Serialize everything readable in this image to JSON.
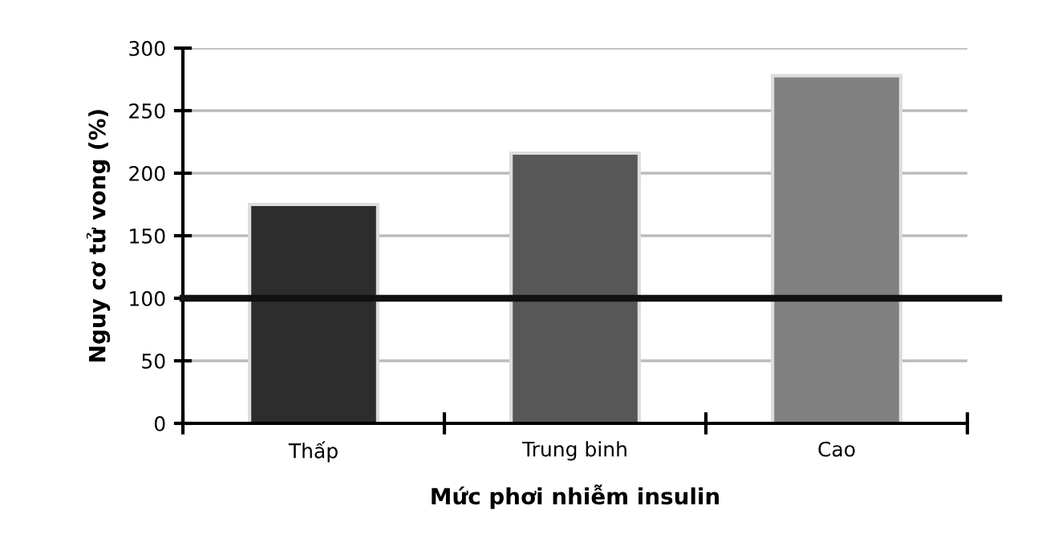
{
  "chart_data": {
    "type": "bar",
    "xlabel": "Mức phơi nhiễm insulin",
    "ylabel": "Nguy cơ tử vong (%)",
    "categories": [
      "Thấp",
      "Trung binh",
      "Cao"
    ],
    "values": [
      175,
      216,
      278
    ],
    "colors": [
      "#2d2d2d",
      "#575757",
      "#808080"
    ],
    "ylim": [
      0,
      300
    ],
    "yticks": [
      0,
      50,
      100,
      150,
      200,
      250,
      300
    ],
    "grid": "y",
    "ref_lines": [
      {
        "axis": "y",
        "value": 100,
        "color": "#111111"
      }
    ]
  }
}
